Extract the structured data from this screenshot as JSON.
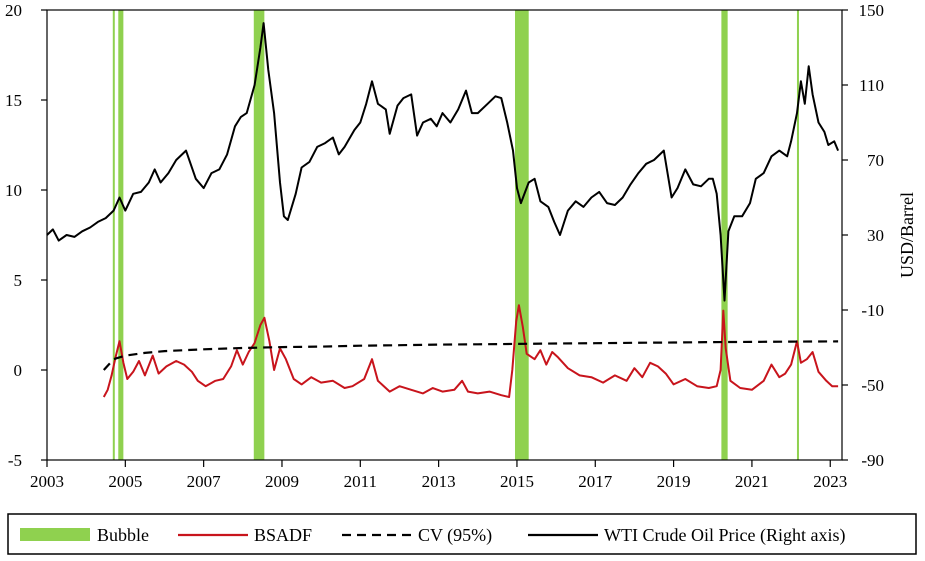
{
  "chart_data": {
    "type": "line",
    "title": "",
    "xlabel": "",
    "ylabel_left": "",
    "ylabel_right": "USD/Barrel",
    "x_range": [
      2003,
      2023.3
    ],
    "x_ticks": [
      "2003",
      "2005",
      "2007",
      "2009",
      "2011",
      "2013",
      "2015",
      "2017",
      "2019",
      "2021",
      "2023"
    ],
    "y_left_range": [
      -5,
      20
    ],
    "y_left_ticks": [
      "20",
      "15",
      "10",
      "5",
      "0",
      "-5"
    ],
    "y_right_range": [
      -90,
      150
    ],
    "y_right_ticks": [
      "150",
      "110",
      "70",
      "30",
      "-10",
      "-50",
      "-90"
    ],
    "grid": false,
    "legend_position": "bottom",
    "colors": {
      "bubble": "#8fd14f",
      "bsadf": "#c8141c",
      "cv": "#000000",
      "wti": "#000000"
    },
    "legend": {
      "bubble": "Bubble",
      "bsadf": "BSADF",
      "cv": "CV (95%)",
      "wti": "WTI Crude Oil Price (Right axis)"
    },
    "bubble_periods": [
      {
        "start": 2004.68,
        "end": 2004.73
      },
      {
        "start": 2004.82,
        "end": 2004.95
      },
      {
        "start": 2008.28,
        "end": 2008.55
      },
      {
        "start": 2014.95,
        "end": 2015.3
      },
      {
        "start": 2020.22,
        "end": 2020.38
      },
      {
        "start": 2022.15,
        "end": 2022.2
      }
    ],
    "series": [
      {
        "name": "WTI Crude Oil Price (Right axis)",
        "axis": "right",
        "points": [
          [
            2003.0,
            30
          ],
          [
            2003.15,
            33
          ],
          [
            2003.3,
            27
          ],
          [
            2003.5,
            30
          ],
          [
            2003.7,
            29
          ],
          [
            2003.9,
            32
          ],
          [
            2004.1,
            34
          ],
          [
            2004.3,
            37
          ],
          [
            2004.5,
            39
          ],
          [
            2004.7,
            43
          ],
          [
            2004.85,
            50
          ],
          [
            2005.0,
            43
          ],
          [
            2005.2,
            52
          ],
          [
            2005.4,
            53
          ],
          [
            2005.6,
            58
          ],
          [
            2005.75,
            65
          ],
          [
            2005.9,
            58
          ],
          [
            2006.1,
            63
          ],
          [
            2006.3,
            70
          ],
          [
            2006.55,
            75
          ],
          [
            2006.8,
            60
          ],
          [
            2007.0,
            55
          ],
          [
            2007.2,
            63
          ],
          [
            2007.4,
            65
          ],
          [
            2007.6,
            73
          ],
          [
            2007.8,
            88
          ],
          [
            2007.95,
            93
          ],
          [
            2008.1,
            95
          ],
          [
            2008.3,
            110
          ],
          [
            2008.45,
            130
          ],
          [
            2008.53,
            143
          ],
          [
            2008.65,
            118
          ],
          [
            2008.8,
            95
          ],
          [
            2008.95,
            58
          ],
          [
            2009.05,
            40
          ],
          [
            2009.15,
            38
          ],
          [
            2009.35,
            52
          ],
          [
            2009.5,
            66
          ],
          [
            2009.7,
            69
          ],
          [
            2009.9,
            77
          ],
          [
            2010.1,
            79
          ],
          [
            2010.3,
            82
          ],
          [
            2010.45,
            73
          ],
          [
            2010.6,
            77
          ],
          [
            2010.85,
            86
          ],
          [
            2011.0,
            90
          ],
          [
            2011.15,
            100
          ],
          [
            2011.3,
            112
          ],
          [
            2011.45,
            100
          ],
          [
            2011.65,
            97
          ],
          [
            2011.75,
            84
          ],
          [
            2011.95,
            99
          ],
          [
            2012.1,
            103
          ],
          [
            2012.3,
            105
          ],
          [
            2012.45,
            83
          ],
          [
            2012.6,
            90
          ],
          [
            2012.8,
            92
          ],
          [
            2012.95,
            88
          ],
          [
            2013.1,
            95
          ],
          [
            2013.3,
            90
          ],
          [
            2013.5,
            97
          ],
          [
            2013.7,
            107
          ],
          [
            2013.85,
            95
          ],
          [
            2014.0,
            95
          ],
          [
            2014.25,
            100
          ],
          [
            2014.45,
            104
          ],
          [
            2014.6,
            103
          ],
          [
            2014.75,
            90
          ],
          [
            2014.9,
            75
          ],
          [
            2015.0,
            55
          ],
          [
            2015.1,
            47
          ],
          [
            2015.3,
            58
          ],
          [
            2015.45,
            60
          ],
          [
            2015.6,
            48
          ],
          [
            2015.8,
            45
          ],
          [
            2015.95,
            37
          ],
          [
            2016.1,
            30
          ],
          [
            2016.3,
            43
          ],
          [
            2016.5,
            48
          ],
          [
            2016.7,
            45
          ],
          [
            2016.9,
            50
          ],
          [
            2017.1,
            53
          ],
          [
            2017.3,
            47
          ],
          [
            2017.5,
            46
          ],
          [
            2017.7,
            50
          ],
          [
            2017.9,
            57
          ],
          [
            2018.1,
            63
          ],
          [
            2018.3,
            68
          ],
          [
            2018.5,
            70
          ],
          [
            2018.75,
            75
          ],
          [
            2018.95,
            50
          ],
          [
            2019.1,
            55
          ],
          [
            2019.3,
            65
          ],
          [
            2019.5,
            57
          ],
          [
            2019.7,
            56
          ],
          [
            2019.9,
            60
          ],
          [
            2020.0,
            60
          ],
          [
            2020.1,
            52
          ],
          [
            2020.2,
            30
          ],
          [
            2020.3,
            -5
          ],
          [
            2020.4,
            32
          ],
          [
            2020.55,
            40
          ],
          [
            2020.75,
            40
          ],
          [
            2020.95,
            47
          ],
          [
            2021.1,
            60
          ],
          [
            2021.3,
            63
          ],
          [
            2021.5,
            72
          ],
          [
            2021.7,
            75
          ],
          [
            2021.9,
            72
          ],
          [
            2022.0,
            80
          ],
          [
            2022.15,
            95
          ],
          [
            2022.25,
            112
          ],
          [
            2022.35,
            100
          ],
          [
            2022.45,
            120
          ],
          [
            2022.55,
            105
          ],
          [
            2022.7,
            90
          ],
          [
            2022.85,
            85
          ],
          [
            2022.95,
            78
          ],
          [
            2023.1,
            80
          ],
          [
            2023.2,
            75
          ]
        ]
      },
      {
        "name": "BSADF",
        "axis": "left",
        "points": [
          [
            2004.45,
            -1.5
          ],
          [
            2004.55,
            -1.1
          ],
          [
            2004.65,
            -0.3
          ],
          [
            2004.75,
            0.7
          ],
          [
            2004.85,
            1.6
          ],
          [
            2004.95,
            0.4
          ],
          [
            2005.05,
            -0.5
          ],
          [
            2005.2,
            -0.1
          ],
          [
            2005.35,
            0.5
          ],
          [
            2005.5,
            -0.3
          ],
          [
            2005.7,
            0.8
          ],
          [
            2005.85,
            -0.2
          ],
          [
            2006.05,
            0.2
          ],
          [
            2006.3,
            0.5
          ],
          [
            2006.5,
            0.3
          ],
          [
            2006.7,
            -0.1
          ],
          [
            2006.85,
            -0.6
          ],
          [
            2007.05,
            -0.9
          ],
          [
            2007.3,
            -0.6
          ],
          [
            2007.5,
            -0.5
          ],
          [
            2007.7,
            0.2
          ],
          [
            2007.85,
            1.1
          ],
          [
            2008.0,
            0.3
          ],
          [
            2008.15,
            1.0
          ],
          [
            2008.3,
            1.5
          ],
          [
            2008.45,
            2.5
          ],
          [
            2008.55,
            2.9
          ],
          [
            2008.68,
            1.6
          ],
          [
            2008.8,
            0.0
          ],
          [
            2008.95,
            1.2
          ],
          [
            2009.1,
            0.6
          ],
          [
            2009.3,
            -0.5
          ],
          [
            2009.5,
            -0.8
          ],
          [
            2009.75,
            -0.4
          ],
          [
            2010.0,
            -0.7
          ],
          [
            2010.3,
            -0.6
          ],
          [
            2010.6,
            -1.0
          ],
          [
            2010.8,
            -0.9
          ],
          [
            2011.1,
            -0.5
          ],
          [
            2011.3,
            0.6
          ],
          [
            2011.45,
            -0.6
          ],
          [
            2011.75,
            -1.2
          ],
          [
            2012.0,
            -0.9
          ],
          [
            2012.3,
            -1.1
          ],
          [
            2012.6,
            -1.3
          ],
          [
            2012.85,
            -1.0
          ],
          [
            2013.1,
            -1.2
          ],
          [
            2013.4,
            -1.1
          ],
          [
            2013.6,
            -0.6
          ],
          [
            2013.75,
            -1.2
          ],
          [
            2014.0,
            -1.3
          ],
          [
            2014.3,
            -1.2
          ],
          [
            2014.6,
            -1.4
          ],
          [
            2014.8,
            -1.5
          ],
          [
            2014.88,
            0.0
          ],
          [
            2014.98,
            2.7
          ],
          [
            2015.05,
            3.6
          ],
          [
            2015.15,
            2.4
          ],
          [
            2015.25,
            0.9
          ],
          [
            2015.45,
            0.6
          ],
          [
            2015.6,
            1.1
          ],
          [
            2015.75,
            0.3
          ],
          [
            2015.9,
            1.0
          ],
          [
            2016.05,
            0.7
          ],
          [
            2016.3,
            0.1
          ],
          [
            2016.6,
            -0.3
          ],
          [
            2016.9,
            -0.4
          ],
          [
            2017.2,
            -0.7
          ],
          [
            2017.5,
            -0.3
          ],
          [
            2017.8,
            -0.6
          ],
          [
            2018.0,
            0.1
          ],
          [
            2018.2,
            -0.4
          ],
          [
            2018.4,
            0.4
          ],
          [
            2018.6,
            0.2
          ],
          [
            2018.8,
            -0.2
          ],
          [
            2019.0,
            -0.8
          ],
          [
            2019.3,
            -0.5
          ],
          [
            2019.6,
            -0.9
          ],
          [
            2019.9,
            -1.0
          ],
          [
            2020.1,
            -0.9
          ],
          [
            2020.2,
            0.0
          ],
          [
            2020.27,
            3.3
          ],
          [
            2020.33,
            1.2
          ],
          [
            2020.45,
            -0.6
          ],
          [
            2020.7,
            -1.0
          ],
          [
            2021.0,
            -1.1
          ],
          [
            2021.3,
            -0.6
          ],
          [
            2021.5,
            0.3
          ],
          [
            2021.7,
            -0.4
          ],
          [
            2021.85,
            -0.2
          ],
          [
            2022.0,
            0.3
          ],
          [
            2022.15,
            1.6
          ],
          [
            2022.25,
            0.4
          ],
          [
            2022.4,
            0.6
          ],
          [
            2022.55,
            1.0
          ],
          [
            2022.7,
            -0.1
          ],
          [
            2022.9,
            -0.6
          ],
          [
            2023.05,
            -0.9
          ],
          [
            2023.2,
            -0.9
          ]
        ]
      },
      {
        "name": "CV (95%)",
        "axis": "left",
        "points": [
          [
            2004.45,
            0.0
          ],
          [
            2004.7,
            0.6
          ],
          [
            2005.0,
            0.8
          ],
          [
            2005.5,
            0.95
          ],
          [
            2006.0,
            1.05
          ],
          [
            2007.0,
            1.15
          ],
          [
            2008.0,
            1.22
          ],
          [
            2009.0,
            1.27
          ],
          [
            2010.0,
            1.3
          ],
          [
            2011.0,
            1.35
          ],
          [
            2012.0,
            1.38
          ],
          [
            2013.0,
            1.41
          ],
          [
            2014.0,
            1.43
          ],
          [
            2015.0,
            1.45
          ],
          [
            2016.0,
            1.47
          ],
          [
            2017.0,
            1.49
          ],
          [
            2018.0,
            1.51
          ],
          [
            2019.0,
            1.53
          ],
          [
            2020.0,
            1.55
          ],
          [
            2021.0,
            1.56
          ],
          [
            2022.0,
            1.58
          ],
          [
            2023.2,
            1.59
          ]
        ]
      }
    ]
  }
}
